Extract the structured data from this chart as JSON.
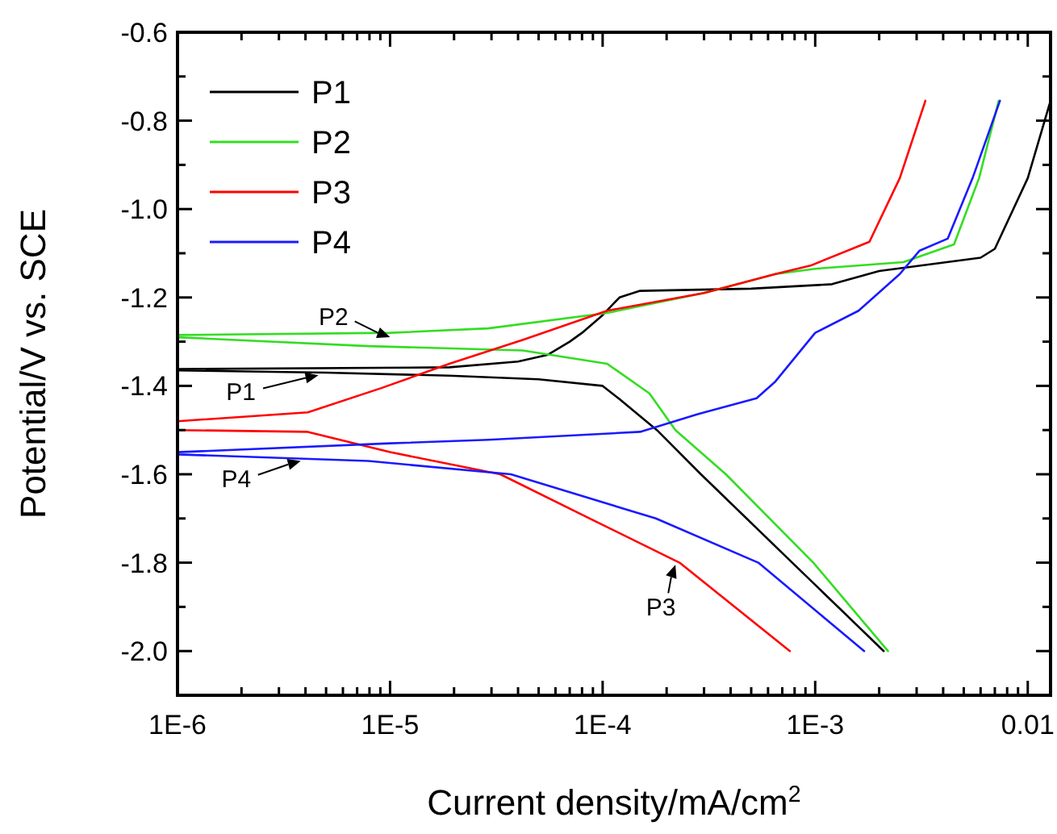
{
  "chart_data": {
    "type": "line",
    "xlabel": "Current density/mA/cm$^{2}$",
    "ylabel": "Potential/V vs. SCE",
    "log": "x",
    "xlim": [
      1e-06,
      0.0128
    ],
    "ylim": [
      -2.1,
      -0.6
    ],
    "xticks": [
      {
        "value": 1e-06,
        "label": "1E-6"
      },
      {
        "value": 2e-06,
        "label": null
      },
      {
        "value": 3e-06,
        "label": null
      },
      {
        "value": 4e-06,
        "label": null
      },
      {
        "value": 5e-06,
        "label": null
      },
      {
        "value": 6e-06,
        "label": null
      },
      {
        "value": 7e-06,
        "label": null
      },
      {
        "value": 8e-06,
        "label": null
      },
      {
        "value": 9e-06,
        "label": null
      },
      {
        "value": 1e-05,
        "label": "1E-5"
      },
      {
        "value": 2e-05,
        "label": null
      },
      {
        "value": 3e-05,
        "label": null
      },
      {
        "value": 4e-05,
        "label": null
      },
      {
        "value": 5e-05,
        "label": null
      },
      {
        "value": 6e-05,
        "label": null
      },
      {
        "value": 7e-05,
        "label": null
      },
      {
        "value": 8e-05,
        "label": null
      },
      {
        "value": 9e-05,
        "label": null
      },
      {
        "value": 0.0001,
        "label": "1E-4"
      },
      {
        "value": 0.0002,
        "label": null
      },
      {
        "value": 0.0003,
        "label": null
      },
      {
        "value": 0.0004,
        "label": null
      },
      {
        "value": 0.0005,
        "label": null
      },
      {
        "value": 0.0006,
        "label": null
      },
      {
        "value": 0.0007,
        "label": null
      },
      {
        "value": 0.0008,
        "label": null
      },
      {
        "value": 0.0009,
        "label": null
      },
      {
        "value": 0.001,
        "label": "1E-3"
      },
      {
        "value": 0.002,
        "label": null
      },
      {
        "value": 0.003,
        "label": null
      },
      {
        "value": 0.004,
        "label": null
      },
      {
        "value": 0.005,
        "label": null
      },
      {
        "value": 0.006,
        "label": null
      },
      {
        "value": 0.007,
        "label": null
      },
      {
        "value": 0.008,
        "label": null
      },
      {
        "value": 0.009,
        "label": null
      },
      0.01
    ],
    "yticks": [
      -0.6,
      {
        "value": -0.7,
        "label": null
      },
      -0.8,
      {
        "value": -0.9,
        "label": null
      },
      {
        "value": -1.0,
        "label": "-1.0"
      },
      {
        "value": -1.1,
        "label": null
      },
      -1.2,
      {
        "value": -1.3,
        "label": null
      },
      -1.4,
      {
        "value": -1.5,
        "label": null
      },
      -1.6,
      {
        "value": -1.7,
        "label": null
      },
      -1.8,
      {
        "value": -1.9,
        "label": null
      },
      {
        "value": -2.0,
        "label": "-2.0"
      },
      {
        "value": -2.1,
        "label": null
      }
    ],
    "grid": false,
    "legend": "top left",
    "series": [
      {
        "name": "P1",
        "color": "#000000",
        "x": [
          0.0021,
          0.00078,
          0.00029,
          0.00018,
          0.00012,
          0.0001,
          5e-05,
          1.9e-05,
          5e-06,
          1e-06,
          1e-06,
          1.9e-05,
          4e-05,
          5.5e-05,
          7e-05,
          8e-05,
          0.0001,
          0.00012,
          0.00015,
          0.0005,
          0.0012,
          0.002,
          0.006,
          0.007,
          0.01,
          0.0128
        ],
        "values": [
          -2.0,
          -1.8,
          -1.6,
          -1.5,
          -1.43,
          -1.4,
          -1.385,
          -1.377,
          -1.37,
          -1.365,
          -1.362,
          -1.358,
          -1.345,
          -1.33,
          -1.3,
          -1.28,
          -1.24,
          -1.2,
          -1.185,
          -1.18,
          -1.17,
          -1.14,
          -1.11,
          -1.09,
          -0.93,
          -0.755
        ]
      },
      {
        "name": "P2",
        "color": "#33dd22",
        "x": [
          0.0022,
          0.00098,
          0.00038,
          0.00022,
          0.000166,
          0.000105,
          4.2e-05,
          7.9e-06,
          1e-06,
          1e-06,
          1e-05,
          2.9e-05,
          0.000105,
          0.0003,
          0.00065,
          0.001,
          0.0026,
          0.0045,
          0.0059,
          0.0073
        ],
        "values": [
          -2.0,
          -1.8,
          -1.6,
          -1.5,
          -1.417,
          -1.35,
          -1.32,
          -1.31,
          -1.29,
          -1.285,
          -1.28,
          -1.27,
          -1.235,
          -1.19,
          -1.147,
          -1.135,
          -1.12,
          -1.08,
          -0.93,
          -0.755
        ]
      },
      {
        "name": "P3",
        "color": "#ff0000",
        "x": [
          0.00076,
          0.00023,
          8.7e-05,
          3.3e-05,
          1e-05,
          4.1e-06,
          1e-06,
          1e-06,
          4.1e-06,
          9.1e-06,
          1.9e-05,
          4.2e-05,
          0.000105,
          0.0003,
          0.00065,
          0.00095,
          0.0018,
          0.0025,
          0.0033
        ],
        "values": [
          -2.0,
          -1.8,
          -1.7,
          -1.6,
          -1.55,
          -1.504,
          -1.5,
          -1.48,
          -1.46,
          -1.405,
          -1.35,
          -1.296,
          -1.23,
          -1.19,
          -1.147,
          -1.128,
          -1.074,
          -0.93,
          -0.755
        ]
      },
      {
        "name": "P4",
        "color": "#1a1aff",
        "x": [
          0.0017,
          0.00054,
          0.000178,
          3.7e-05,
          7.9e-06,
          1e-06,
          1e-06,
          1e-05,
          2.9e-05,
          0.00015,
          0.00028,
          0.00053,
          0.00065,
          0.001,
          0.0016,
          0.0025,
          0.0031,
          0.0042,
          0.0055,
          0.0074
        ],
        "values": [
          -2.0,
          -1.8,
          -1.7,
          -1.6,
          -1.57,
          -1.555,
          -1.55,
          -1.53,
          -1.522,
          -1.504,
          -1.464,
          -1.428,
          -1.39,
          -1.28,
          -1.23,
          -1.147,
          -1.094,
          -1.067,
          -0.93,
          -0.755
        ]
      }
    ],
    "annotations": [
      {
        "text": "P2",
        "x": 1e-05,
        "y": -1.29
      },
      {
        "text": "P1",
        "x": 4.6e-06,
        "y": -1.376
      },
      {
        "text": "P4",
        "x": 3.8e-06,
        "y": -1.57
      },
      {
        "text": "P3",
        "x": 0.00022,
        "y": -1.805
      }
    ]
  }
}
